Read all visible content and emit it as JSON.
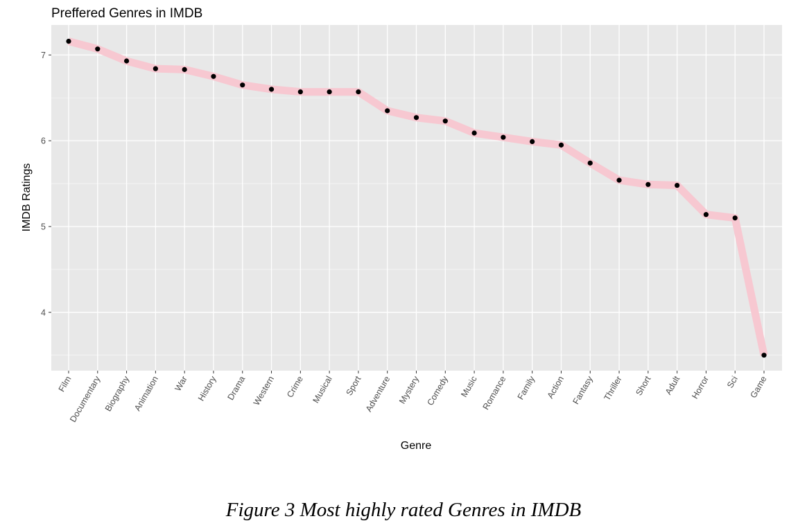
{
  "chart_data": {
    "type": "line",
    "title": "Preffered Genres in IMDB",
    "xlabel": "Genre",
    "ylabel": "IMDB Ratings",
    "categories": [
      "Film",
      "Documentary",
      "Biography",
      "Animation",
      "War",
      "History",
      "Drama",
      "Western",
      "Crime",
      "Musical",
      "Sport",
      "Adventure",
      "Mystery",
      "Comedy",
      "Music",
      "Romance",
      "Family",
      "Action",
      "Fantasy",
      "Thriller",
      "Short",
      "Adult",
      "Horror",
      "Sci",
      "Game"
    ],
    "values": [
      7.16,
      7.07,
      6.93,
      6.84,
      6.83,
      6.75,
      6.65,
      6.6,
      6.57,
      6.57,
      6.57,
      6.35,
      6.27,
      6.23,
      6.09,
      6.04,
      5.99,
      5.95,
      5.74,
      5.54,
      5.49,
      5.48,
      5.14,
      5.1,
      3.5
    ],
    "ylim": [
      3.32,
      7.35
    ],
    "yticks": [
      4,
      5,
      6,
      7
    ],
    "grid": true,
    "colors": {
      "panel": "#e8e8e8",
      "grid": "#ffffff",
      "line": "#f7c8d1",
      "point": "#000000"
    }
  },
  "caption": "Figure 3 Most highly rated Genres in IMDB"
}
